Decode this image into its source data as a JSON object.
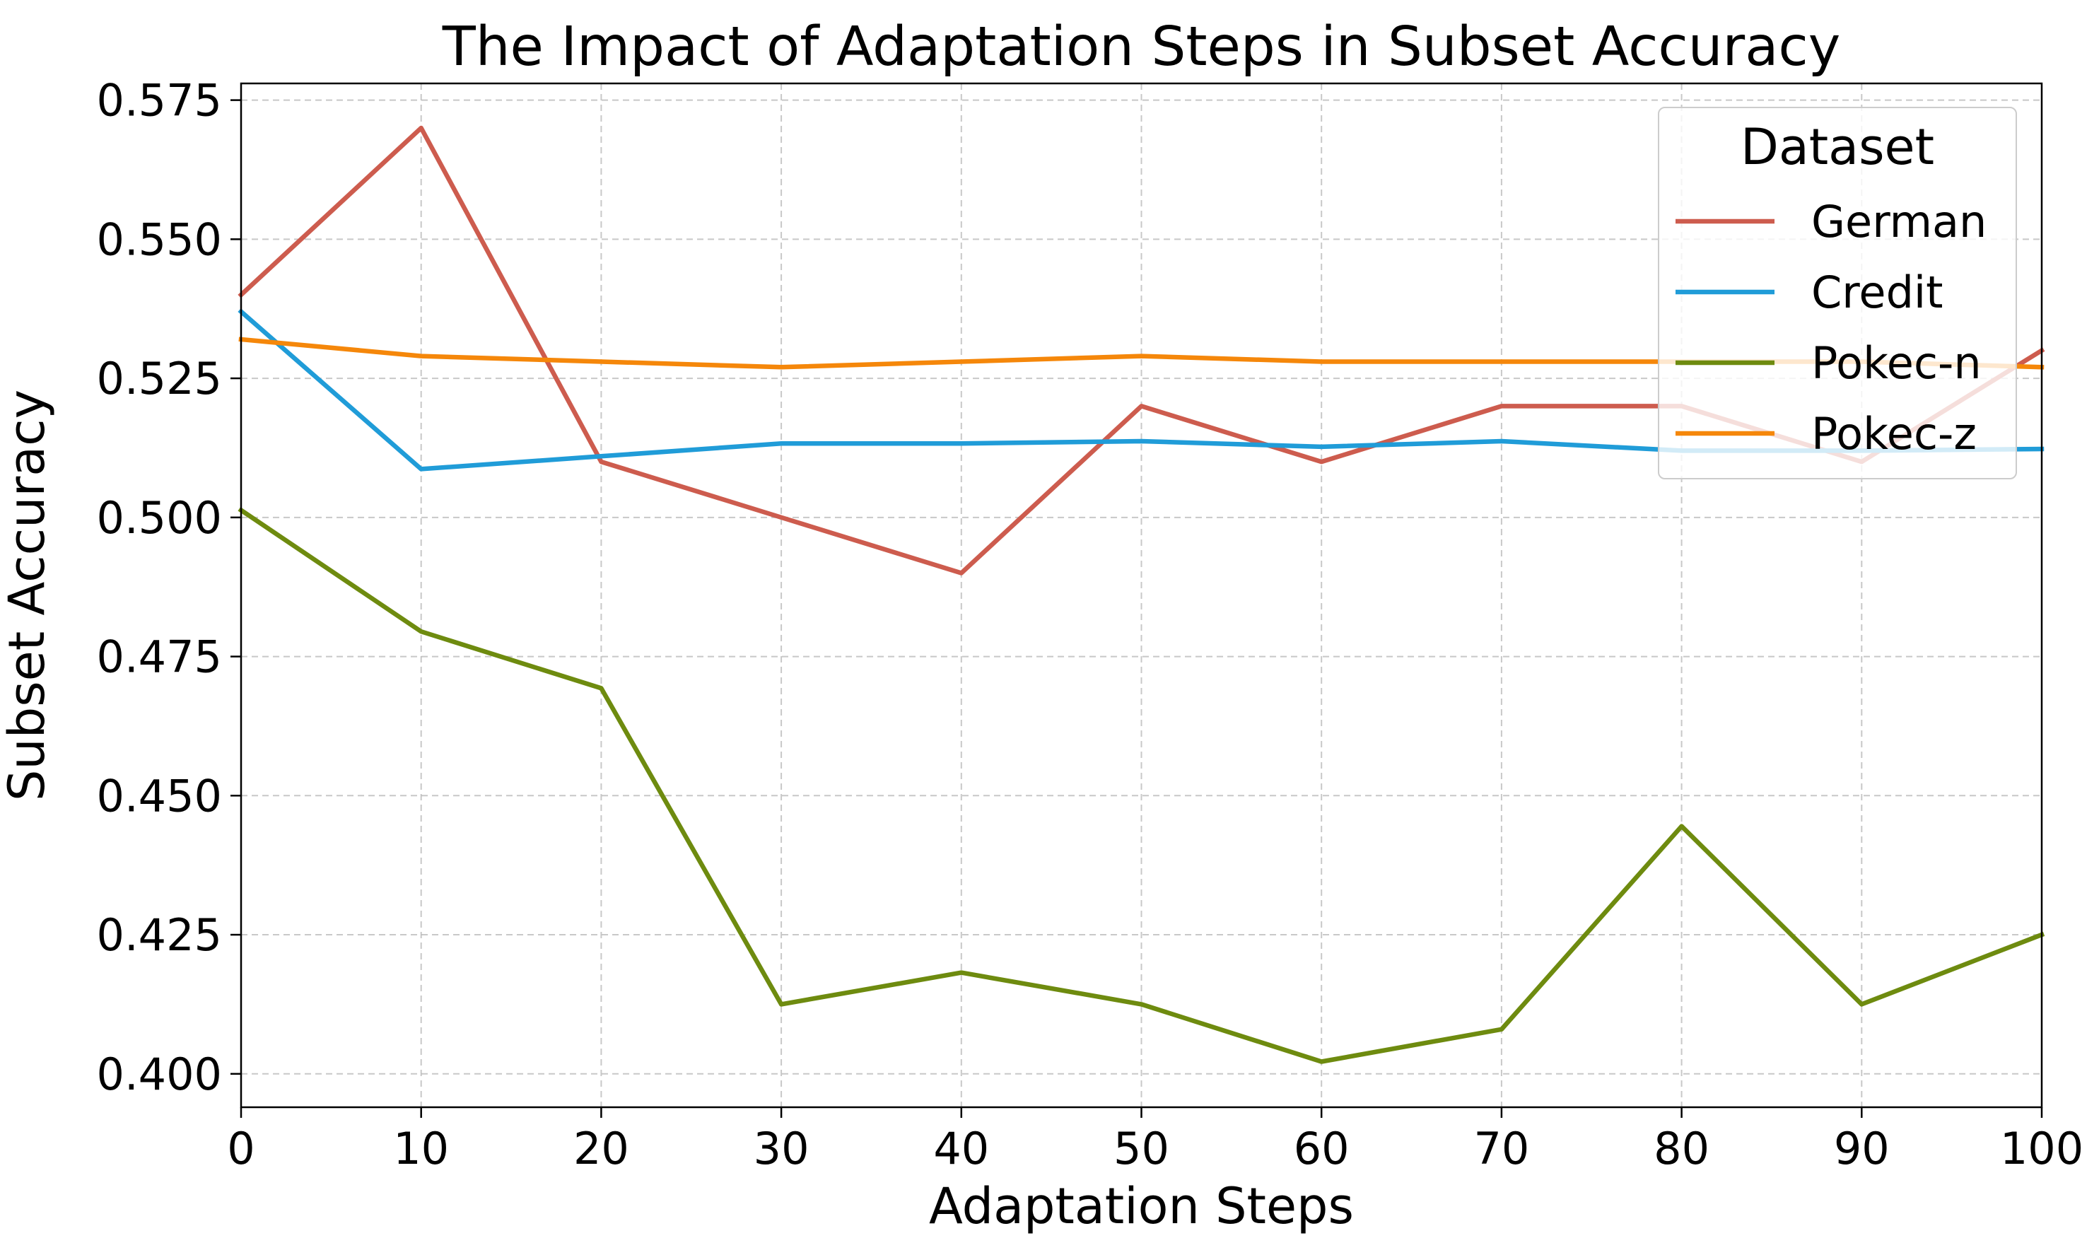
{
  "chart_data": {
    "type": "line",
    "title": "The Impact of Adaptation Steps in Subset Accuracy",
    "xlabel": "Adaptation Steps",
    "ylabel": "Subset Accuracy",
    "xlim": [
      0,
      100
    ],
    "ylim": [
      0.394,
      0.578
    ],
    "xticks": [
      0,
      10,
      20,
      30,
      40,
      50,
      60,
      70,
      80,
      90,
      100
    ],
    "xtick_labels": [
      "0",
      "10",
      "20",
      "30",
      "40",
      "50",
      "60",
      "70",
      "80",
      "90",
      "100"
    ],
    "yticks": [
      0.4,
      0.425,
      0.45,
      0.475,
      0.5,
      0.525,
      0.55,
      0.575
    ],
    "ytick_labels": [
      "0.400",
      "0.425",
      "0.450",
      "0.475",
      "0.500",
      "0.525",
      "0.550",
      "0.575"
    ],
    "grid": true,
    "legend": {
      "title": "Dataset",
      "placement": "top-right"
    },
    "x": [
      0,
      10,
      20,
      30,
      40,
      50,
      60,
      70,
      80,
      90,
      100
    ],
    "series": [
      {
        "name": "German",
        "color": "#CD5C4E",
        "values": [
          0.54,
          0.57,
          0.51,
          0.5,
          0.49,
          0.52,
          0.51,
          0.52,
          0.52,
          0.51,
          0.53
        ]
      },
      {
        "name": "Credit",
        "color": "#209CD8",
        "values": [
          0.537,
          0.5087,
          0.511,
          0.5133,
          0.5133,
          0.5137,
          0.5127,
          0.5137,
          0.512,
          0.512,
          0.5123
        ]
      },
      {
        "name": "Pokec-n",
        "color": "#6E8B0F",
        "values": [
          0.5013,
          0.4795,
          0.4693,
          0.4125,
          0.4182,
          0.4125,
          0.4022,
          0.408,
          0.4445,
          0.4125,
          0.425
        ]
      },
      {
        "name": "Pokec-z",
        "color": "#F5870A",
        "values": [
          0.532,
          0.529,
          0.528,
          0.527,
          0.528,
          0.529,
          0.528,
          0.528,
          0.528,
          0.528,
          0.527
        ]
      }
    ]
  }
}
